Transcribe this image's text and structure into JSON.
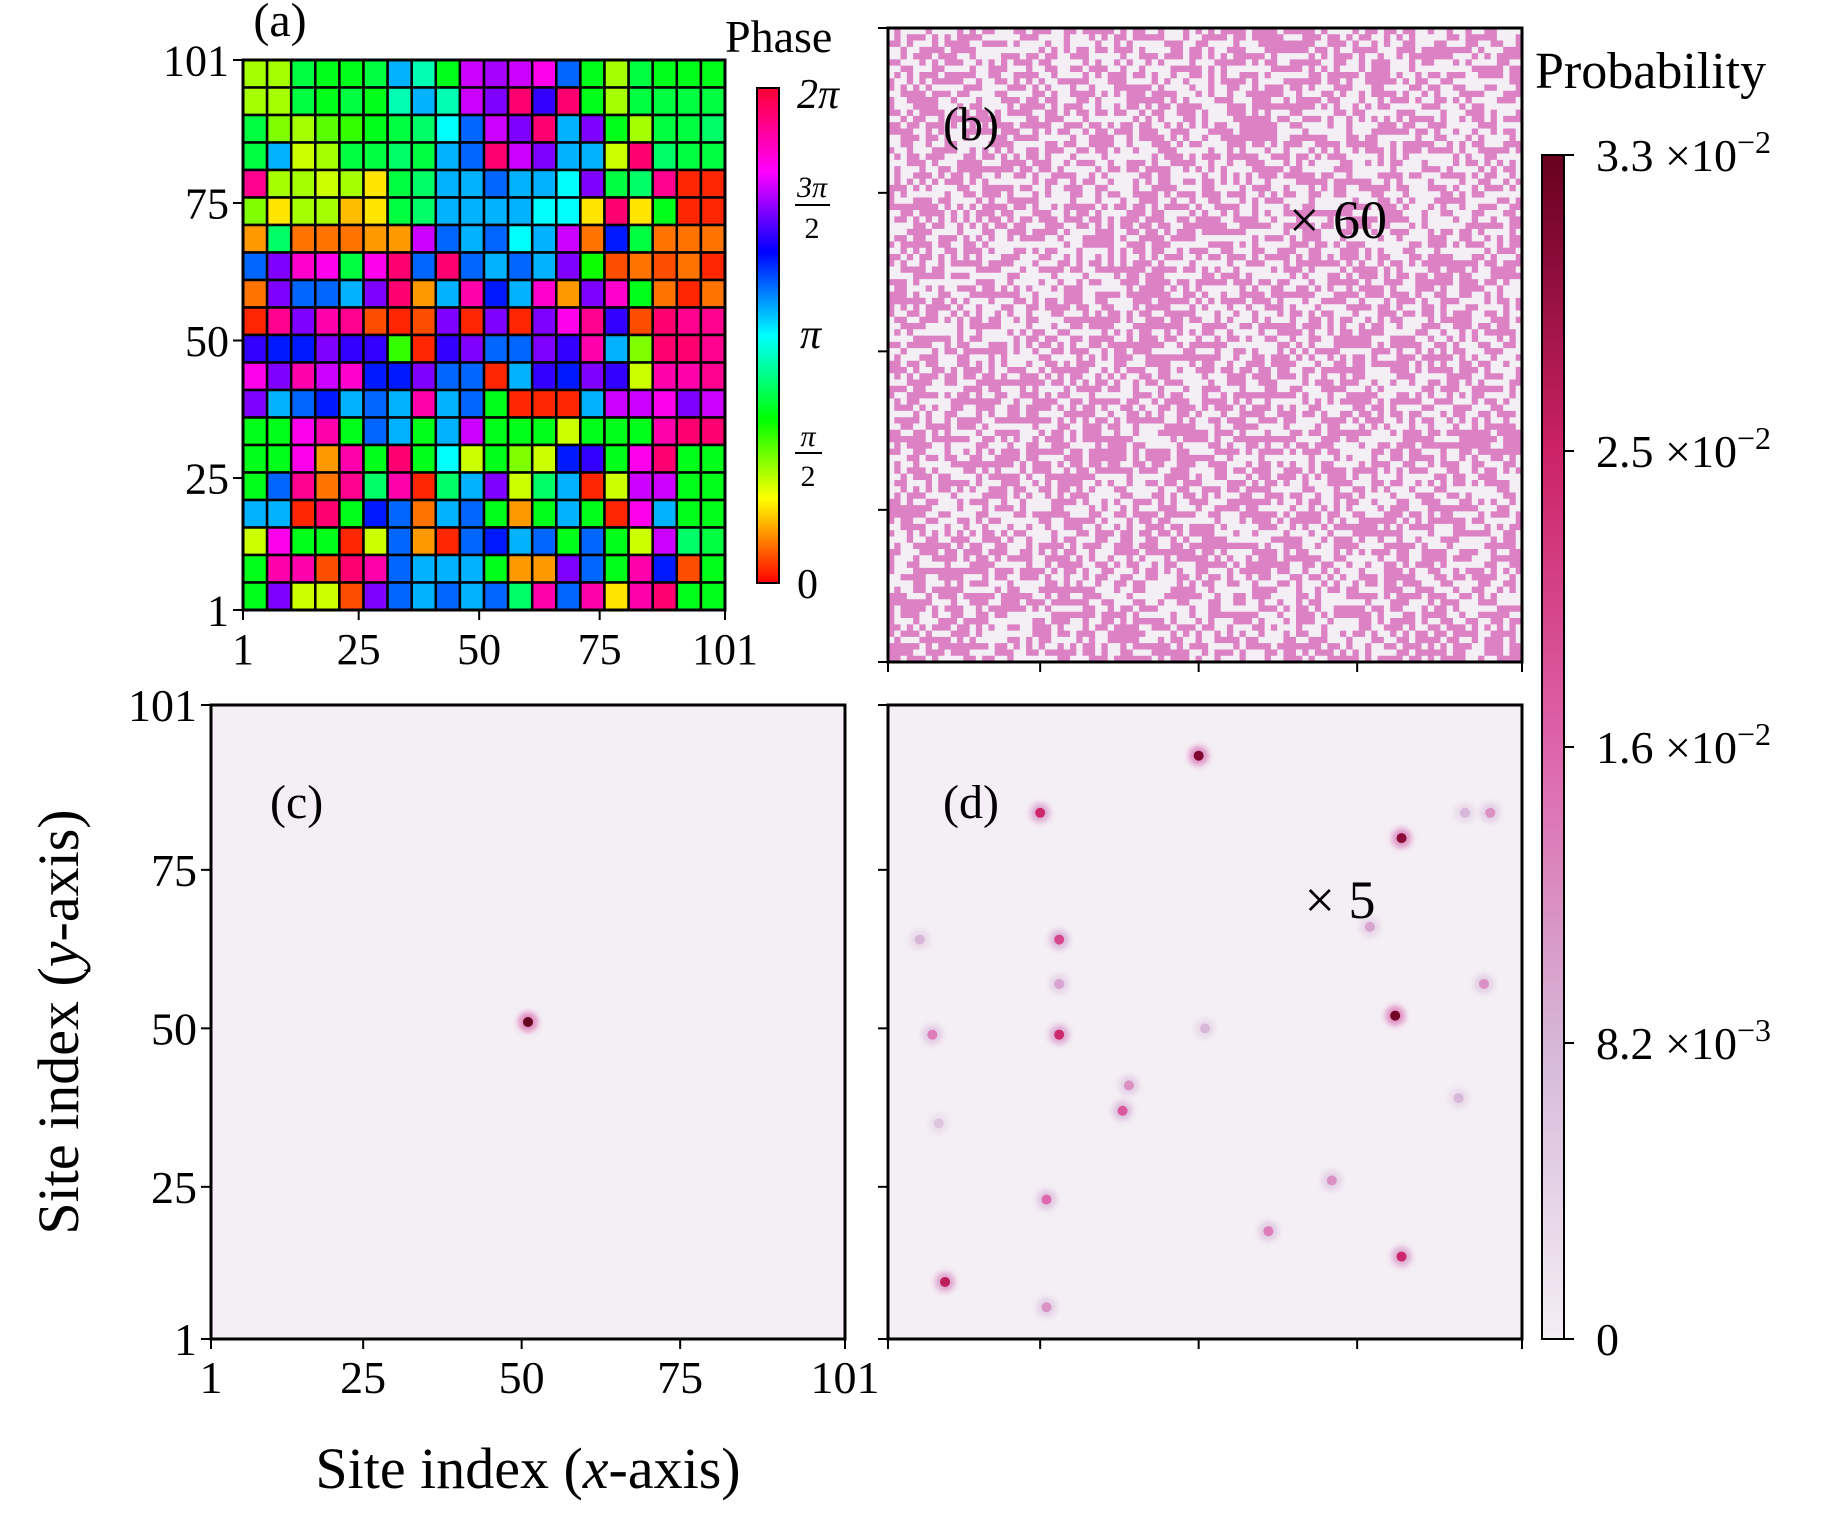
{
  "chart_data": [
    {
      "panel": "(a)",
      "type": "heatmap",
      "colorbar_label": "Phase",
      "colorbar_ticks": [
        "0",
        "π/2",
        "π",
        "3π/2",
        "2π"
      ],
      "colormap": [
        "#ff0000",
        "#ffff00",
        "#00ff00",
        "#00ffff",
        "#0000ff",
        "#ff00ff",
        "#ff0033"
      ],
      "xticks": [
        "1",
        "25",
        "50",
        "75",
        "101"
      ],
      "yticks": [
        "1",
        "25",
        "50",
        "75",
        "101"
      ],
      "xlim": [
        1,
        101
      ],
      "ylim": [
        1,
        101
      ],
      "grid_size": 20,
      "phase_grid_in_units_of_pi": [
        [
          0.45,
          0.45,
          0.75,
          0.7,
          0.7,
          0.75,
          1.1,
          0.9,
          0.7,
          1.6,
          1.55,
          1.6,
          1.7,
          1.2,
          0.7,
          0.45,
          0.75,
          0.7,
          0.7,
          0.7
        ],
        [
          0.45,
          0.45,
          0.75,
          0.7,
          0.75,
          0.7,
          0.9,
          1.1,
          0.9,
          1.6,
          1.5,
          1.9,
          1.4,
          1.9,
          0.7,
          0.45,
          0.75,
          0.75,
          0.75,
          0.75
        ],
        [
          0.75,
          0.5,
          0.45,
          0.55,
          0.6,
          0.7,
          0.75,
          0.8,
          1.0,
          1.2,
          1.6,
          1.5,
          1.9,
          1.1,
          1.5,
          0.7,
          0.45,
          0.75,
          0.75,
          0.8
        ],
        [
          0.75,
          1.1,
          0.4,
          0.45,
          0.75,
          0.75,
          0.8,
          0.75,
          1.1,
          1.2,
          1.9,
          1.6,
          1.5,
          1.1,
          1.1,
          0.4,
          1.9,
          0.8,
          0.75,
          0.75
        ],
        [
          1.85,
          0.45,
          0.45,
          0.4,
          0.45,
          0.3,
          0.75,
          0.8,
          1.1,
          1.1,
          1.2,
          1.1,
          1.1,
          1.0,
          1.5,
          0.75,
          0.8,
          1.85,
          0.05,
          0.05
        ],
        [
          0.5,
          0.3,
          0.45,
          0.45,
          0.25,
          0.3,
          0.75,
          0.8,
          1.1,
          1.1,
          1.1,
          1.1,
          1.0,
          1.0,
          0.3,
          1.9,
          0.3,
          0.7,
          0.05,
          0.05
        ],
        [
          0.2,
          0.8,
          0.15,
          0.15,
          0.15,
          0.2,
          0.2,
          1.6,
          1.2,
          1.1,
          1.2,
          1.0,
          1.1,
          1.6,
          0.15,
          1.3,
          0.75,
          0.15,
          0.15,
          0.15
        ],
        [
          1.2,
          1.5,
          1.75,
          1.7,
          0.75,
          1.7,
          1.9,
          1.2,
          1.9,
          1.2,
          1.1,
          1.2,
          1.1,
          1.5,
          0.65,
          0.1,
          0.15,
          0.1,
          0.15,
          0.05
        ],
        [
          0.15,
          1.5,
          1.2,
          1.2,
          1.1,
          1.5,
          1.9,
          0.2,
          1.1,
          1.8,
          1.3,
          1.1,
          1.75,
          0.2,
          1.5,
          1.75,
          0.7,
          0.15,
          0.05,
          0.15
        ],
        [
          0.05,
          1.85,
          1.5,
          1.8,
          1.85,
          0.1,
          0.05,
          0.1,
          1.5,
          0.05,
          1.5,
          0.05,
          1.5,
          1.7,
          1.85,
          1.4,
          0.1,
          1.9,
          1.85,
          1.85
        ],
        [
          1.4,
          1.3,
          1.3,
          1.5,
          1.4,
          1.4,
          0.6,
          0.05,
          1.4,
          1.5,
          1.2,
          1.2,
          1.5,
          1.4,
          1.8,
          1.1,
          0.5,
          1.9,
          1.9,
          1.85
        ],
        [
          1.7,
          1.5,
          1.8,
          1.6,
          1.75,
          1.3,
          1.3,
          1.5,
          1.2,
          1.2,
          0.05,
          1.1,
          1.4,
          1.3,
          1.5,
          1.4,
          0.4,
          1.8,
          1.8,
          1.85
        ],
        [
          1.5,
          1.1,
          1.2,
          1.3,
          1.1,
          1.2,
          1.1,
          1.8,
          1.1,
          1.2,
          0.7,
          0.05,
          0.05,
          0.05,
          1.1,
          1.6,
          1.6,
          1.7,
          1.5,
          1.6
        ],
        [
          0.7,
          0.7,
          1.7,
          1.8,
          0.7,
          1.2,
          1.1,
          0.7,
          1.1,
          1.6,
          0.7,
          0.7,
          0.7,
          0.4,
          0.7,
          0.7,
          0.7,
          1.8,
          1.9,
          1.9
        ],
        [
          0.7,
          0.7,
          1.7,
          0.2,
          1.8,
          0.7,
          1.9,
          0.7,
          1.0,
          0.4,
          0.7,
          0.5,
          0.4,
          1.3,
          1.4,
          0.7,
          1.7,
          1.9,
          0.7,
          0.7
        ],
        [
          0.7,
          1.2,
          1.85,
          0.15,
          1.85,
          0.8,
          1.8,
          0.05,
          0.8,
          1.1,
          1.5,
          0.4,
          0.8,
          1.1,
          0.05,
          0.4,
          1.6,
          1.6,
          0.7,
          0.7
        ],
        [
          1.1,
          1.1,
          0.05,
          1.9,
          0.7,
          1.3,
          1.2,
          0.15,
          1.1,
          1.2,
          0.7,
          0.2,
          0.7,
          1.1,
          0.7,
          0.05,
          1.7,
          1.1,
          0.7,
          0.7
        ],
        [
          0.4,
          1.7,
          0.7,
          0.7,
          0.05,
          0.4,
          1.2,
          0.2,
          0.05,
          1.2,
          1.3,
          1.1,
          1.2,
          0.7,
          1.2,
          0.7,
          0.4,
          1.6,
          0.8,
          0.75
        ],
        [
          0.7,
          1.8,
          1.8,
          0.1,
          1.9,
          1.8,
          1.2,
          1.1,
          1.1,
          1.1,
          0.7,
          0.2,
          0.2,
          1.5,
          1.2,
          0.7,
          1.8,
          1.3,
          0.1,
          0.7
        ],
        [
          0.7,
          1.5,
          0.4,
          0.4,
          0.1,
          1.5,
          1.2,
          1.1,
          1.2,
          1.1,
          1.2,
          0.8,
          1.8,
          1.2,
          1.8,
          0.3,
          1.8,
          1.9,
          0.7,
          0.7
        ]
      ]
    },
    {
      "panel": "(b)",
      "type": "heatmap",
      "annotation": "× 60",
      "description_values": "random binary speckle over 101 × 101 sites",
      "xlim": [
        1,
        101
      ],
      "ylim": [
        1,
        101
      ]
    },
    {
      "panel": "(c)",
      "type": "heatmap",
      "xticks": [
        "1",
        "25",
        "50",
        "75",
        "101"
      ],
      "yticks": [
        "1",
        "25",
        "50",
        "75",
        "101"
      ],
      "xlim": [
        1,
        101
      ],
      "ylim": [
        1,
        101
      ],
      "peaks": [
        {
          "x": 51,
          "y": 51,
          "value": 0.033
        }
      ]
    },
    {
      "panel": "(d)",
      "type": "heatmap",
      "annotation": "× 5",
      "xlim": [
        1,
        101
      ],
      "ylim": [
        1,
        101
      ],
      "peaks": [
        {
          "x": 50,
          "y": 93,
          "value": 0.031
        },
        {
          "x": 25,
          "y": 84,
          "value": 0.024
        },
        {
          "x": 82,
          "y": 80,
          "value": 0.03
        },
        {
          "x": 6,
          "y": 64,
          "value": 0.008
        },
        {
          "x": 28,
          "y": 64,
          "value": 0.02
        },
        {
          "x": 77,
          "y": 66,
          "value": 0.01
        },
        {
          "x": 95,
          "y": 57,
          "value": 0.012
        },
        {
          "x": 28,
          "y": 57,
          "value": 0.01
        },
        {
          "x": 81,
          "y": 52,
          "value": 0.032
        },
        {
          "x": 8,
          "y": 49,
          "value": 0.014
        },
        {
          "x": 28,
          "y": 49,
          "value": 0.024
        },
        {
          "x": 51,
          "y": 50,
          "value": 0.008
        },
        {
          "x": 39,
          "y": 41,
          "value": 0.012
        },
        {
          "x": 38,
          "y": 37,
          "value": 0.018
        },
        {
          "x": 91,
          "y": 39,
          "value": 0.008
        },
        {
          "x": 9,
          "y": 35,
          "value": 0.006
        },
        {
          "x": 71,
          "y": 26,
          "value": 0.012
        },
        {
          "x": 26,
          "y": 23,
          "value": 0.016
        },
        {
          "x": 61,
          "y": 18,
          "value": 0.014
        },
        {
          "x": 82,
          "y": 14,
          "value": 0.024
        },
        {
          "x": 10,
          "y": 10,
          "value": 0.026
        },
        {
          "x": 26,
          "y": 6,
          "value": 0.012
        },
        {
          "x": 96,
          "y": 84,
          "value": 0.012
        },
        {
          "x": 92,
          "y": 84,
          "value": 0.008
        }
      ]
    }
  ],
  "colorbar": {
    "label": "Probability",
    "colormap": [
      "#f4eef5",
      "#d6b6d8",
      "#de64ab",
      "#cc2266",
      "#67001f"
    ],
    "ticks": [
      "0",
      "8.2 ×10",
      "1.6 ×10",
      "2.5 ×10",
      "3.3 ×10"
    ],
    "tick_exponents": [
      "",
      "−3",
      "−2",
      "−2",
      "−2"
    ],
    "range": [
      0,
      0.033
    ]
  },
  "axes": {
    "xlabel_prefix": "Site index (",
    "xlabel_var": "x",
    "xlabel_suffix": "-axis)",
    "ylabel_prefix": "Site index (",
    "ylabel_var": "y",
    "ylabel_suffix": "-axis)"
  }
}
